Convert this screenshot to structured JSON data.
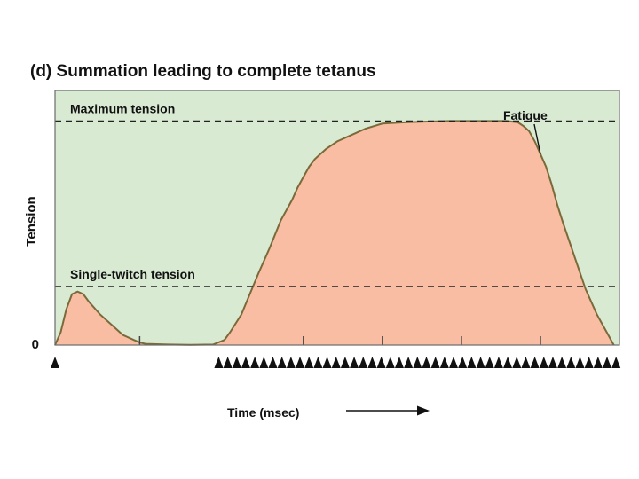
{
  "chart_data": {
    "type": "area",
    "title": "(d) Summation leading to complete tetanus",
    "xlabel": "Time (msec)",
    "ylabel": "Tension",
    "ytick_zero": "0",
    "xlim": [
      0,
      100
    ],
    "ylim": [
      0,
      100
    ],
    "grid": false,
    "x_tick_marks": [
      15,
      44,
      58,
      72,
      86
    ],
    "reference_lines": [
      {
        "name": "Maximum tension",
        "value": 88
      },
      {
        "name": "Single-twitch tension",
        "value": 23
      }
    ],
    "annotations": [
      {
        "text": "Fatigue",
        "x": 86,
        "y": 75
      }
    ],
    "series": [
      {
        "x": [
          0,
          1,
          2,
          3,
          4,
          5,
          6,
          8,
          10,
          12,
          14,
          15,
          16,
          20,
          24,
          28,
          30,
          31,
          33,
          36,
          38,
          40,
          42,
          43,
          44,
          45,
          46,
          47,
          48,
          50,
          52,
          55,
          58,
          62,
          66,
          70,
          75,
          80,
          82,
          83,
          84,
          85,
          86,
          87,
          88,
          89,
          90,
          92,
          94,
          96,
          98,
          99
        ],
        "values": [
          0,
          5,
          14,
          20,
          21,
          20,
          17,
          12,
          8,
          4,
          2,
          1,
          0.5,
          0.2,
          0.1,
          0.2,
          2,
          5,
          12,
          28,
          38,
          49,
          57,
          62,
          66,
          70,
          73,
          75,
          77,
          80,
          82,
          85,
          87,
          87.5,
          87.8,
          88,
          88,
          88,
          87.5,
          86,
          84,
          80,
          75,
          70,
          63,
          55,
          48,
          35,
          22,
          12,
          4,
          0
        ]
      }
    ],
    "stimuli": [
      0,
      29,
      30.6,
      32.2,
      33.8,
      35.4,
      37,
      38.6,
      40.2,
      41.8,
      43.4,
      45,
      46.6,
      48.2,
      49.8,
      51.4,
      53,
      54.6,
      56.2,
      57.8,
      59.4,
      61,
      62.6,
      64.2,
      65.8,
      67.4,
      69,
      70.6,
      72.2,
      73.8,
      75.4,
      77,
      78.6,
      80.2,
      81.8,
      83.4,
      85,
      86.6,
      88.2,
      89.8,
      91.4,
      93,
      94.6,
      96.2,
      97.8,
      99.4
    ],
    "colors": {
      "background": "#d9ead3",
      "fill": "#f9bda3",
      "curve": "#7a6a3a",
      "frame": "#6b6b6b",
      "text": "#111111"
    }
  }
}
